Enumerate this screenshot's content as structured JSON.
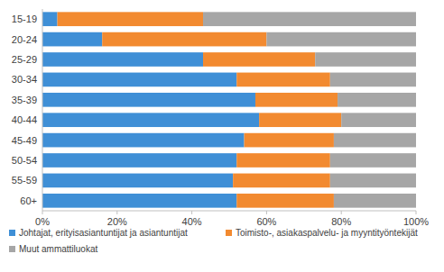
{
  "chart_data": {
    "type": "bar",
    "orientation": "horizontal",
    "stacked": true,
    "grid": false,
    "legend": "bottom",
    "categories": [
      "15-19",
      "20-24",
      "25-29",
      "30-34",
      "35-39",
      "40-44",
      "45-49",
      "50-54",
      "55-59",
      "60+"
    ],
    "series": [
      {
        "name": "Johtajat, erityisasiantuntijat ja asiantuntijat",
        "color": "#3f8fd6",
        "values": [
          4,
          16,
          43,
          52,
          57,
          58,
          54,
          52,
          51,
          52
        ]
      },
      {
        "name": "Toimisto-, asiakaspalvelu- ja myyntityöntekijät",
        "color": "#f28a30",
        "values": [
          39,
          44,
          30,
          25,
          22,
          22,
          24,
          25,
          26,
          26
        ]
      },
      {
        "name": "Muut ammattiluokat",
        "color": "#a6a6a6",
        "values": [
          57,
          40,
          27,
          23,
          21,
          20,
          22,
          23,
          23,
          22
        ]
      }
    ],
    "xlim": [
      0,
      100
    ],
    "xticks": [
      {
        "value": 0,
        "label": "0%"
      },
      {
        "value": 20,
        "label": "20%"
      },
      {
        "value": 40,
        "label": "40%"
      },
      {
        "value": 60,
        "label": "60%"
      },
      {
        "value": 80,
        "label": "80%"
      },
      {
        "value": 100,
        "label": "100%"
      }
    ]
  }
}
